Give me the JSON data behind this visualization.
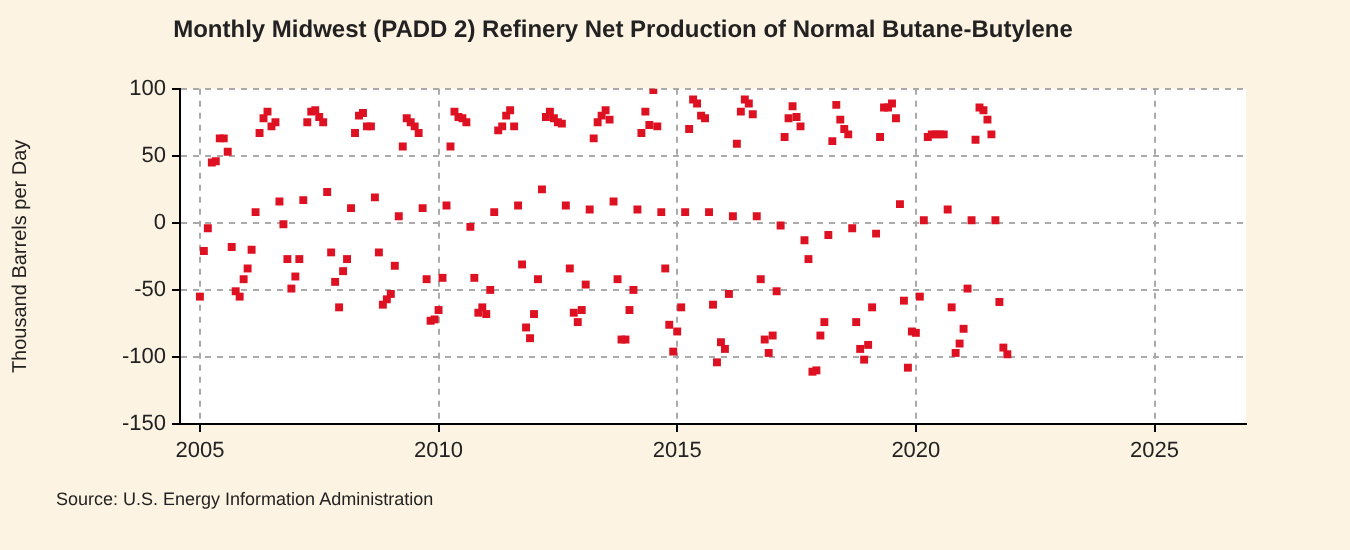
{
  "chart_data": {
    "type": "scatter",
    "title": "Monthly Midwest (PADD 2) Refinery Net Production of Normal Butane-Butylene",
    "ylabel": "Thousand Barrels per Day",
    "annotations": [
      "Source: U.S. Energy Information Administration"
    ],
    "x": [
      "2005-01",
      "2005-02",
      "2005-03",
      "2005-04",
      "2005-05",
      "2005-06",
      "2005-07",
      "2005-08",
      "2005-09",
      "2005-10",
      "2005-11",
      "2005-12",
      "2006-01",
      "2006-02",
      "2006-03",
      "2006-04",
      "2006-05",
      "2006-06",
      "2006-07",
      "2006-08",
      "2006-09",
      "2006-10",
      "2006-11",
      "2006-12",
      "2007-01",
      "2007-02",
      "2007-03",
      "2007-04",
      "2007-05",
      "2007-06",
      "2007-07",
      "2007-08",
      "2007-09",
      "2007-10",
      "2007-11",
      "2007-12",
      "2008-01",
      "2008-02",
      "2008-03",
      "2008-04",
      "2008-05",
      "2008-06",
      "2008-07",
      "2008-08",
      "2008-09",
      "2008-10",
      "2008-11",
      "2008-12",
      "2009-01",
      "2009-02",
      "2009-03",
      "2009-04",
      "2009-05",
      "2009-06",
      "2009-07",
      "2009-08",
      "2009-09",
      "2009-10",
      "2009-11",
      "2009-12",
      "2010-01",
      "2010-02",
      "2010-03",
      "2010-04",
      "2010-05",
      "2010-06",
      "2010-07",
      "2010-08",
      "2010-09",
      "2010-10",
      "2010-11",
      "2010-12",
      "2011-01",
      "2011-02",
      "2011-03",
      "2011-04",
      "2011-05",
      "2011-06",
      "2011-07",
      "2011-08",
      "2011-09",
      "2011-10",
      "2011-11",
      "2011-12",
      "2012-01",
      "2012-02",
      "2012-03",
      "2012-04",
      "2012-05",
      "2012-06",
      "2012-07",
      "2012-08",
      "2012-09",
      "2012-10",
      "2012-11",
      "2012-12",
      "2013-01",
      "2013-02",
      "2013-03",
      "2013-04",
      "2013-05",
      "2013-06",
      "2013-07",
      "2013-08",
      "2013-09",
      "2013-10",
      "2013-11",
      "2013-12",
      "2014-01",
      "2014-02",
      "2014-03",
      "2014-04",
      "2014-05",
      "2014-06",
      "2014-07",
      "2014-08",
      "2014-09",
      "2014-10",
      "2014-11",
      "2014-12",
      "2015-01",
      "2015-02",
      "2015-03",
      "2015-04",
      "2015-05",
      "2015-06",
      "2015-07",
      "2015-08",
      "2015-09",
      "2015-10",
      "2015-11",
      "2015-12",
      "2016-01",
      "2016-02",
      "2016-03",
      "2016-04",
      "2016-05",
      "2016-06",
      "2016-07",
      "2016-08",
      "2016-09",
      "2016-10",
      "2016-11",
      "2016-12",
      "2017-01",
      "2017-02",
      "2017-03",
      "2017-04",
      "2017-05",
      "2017-06",
      "2017-07",
      "2017-08",
      "2017-09",
      "2017-10",
      "2017-11",
      "2017-12",
      "2018-01",
      "2018-02",
      "2018-03",
      "2018-04",
      "2018-05",
      "2018-06",
      "2018-07",
      "2018-08",
      "2018-09",
      "2018-10",
      "2018-11",
      "2018-12",
      "2019-01",
      "2019-02",
      "2019-03",
      "2019-04",
      "2019-05",
      "2019-06",
      "2019-07",
      "2019-08",
      "2019-09",
      "2019-10",
      "2019-11",
      "2019-12",
      "2020-01",
      "2020-02",
      "2020-03",
      "2020-04",
      "2020-05",
      "2020-06",
      "2020-07",
      "2020-08",
      "2020-09",
      "2020-10",
      "2020-11",
      "2020-12",
      "2021-01",
      "2021-02",
      "2021-03",
      "2021-04",
      "2021-05",
      "2021-06",
      "2021-07",
      "2021-08",
      "2021-09",
      "2021-10",
      "2021-11",
      "2021-12"
    ],
    "series": [
      {
        "color": "#dd1122",
        "values": [
          -55,
          -21,
          -4,
          45,
          46,
          63,
          63,
          53,
          -18,
          -51,
          -55,
          -42,
          -34,
          -20,
          8,
          67,
          78,
          83,
          72,
          75,
          16,
          -1,
          -27,
          -49,
          -40,
          -27,
          17,
          75,
          83,
          84,
          79,
          75,
          23,
          -22,
          -44,
          -63,
          -36,
          -27,
          11,
          67,
          80,
          82,
          72,
          72,
          19,
          -22,
          -61,
          -57,
          -53,
          -32,
          5,
          57,
          78,
          75,
          72,
          67,
          11,
          -42,
          -73,
          -72,
          -65,
          -41,
          13,
          57,
          83,
          79,
          78,
          75,
          -3,
          -41,
          -67,
          -63,
          -68,
          -50,
          8,
          69,
          72,
          80,
          84,
          72,
          13,
          -31,
          -78,
          -86,
          -68,
          -42,
          25,
          79,
          83,
          78,
          75,
          74,
          13,
          -34,
          -67,
          -74,
          -65,
          -46,
          10,
          63,
          75,
          80,
          84,
          77,
          16,
          -42,
          -87,
          -87,
          -65,
          -50,
          10,
          67,
          83,
          73,
          99,
          72,
          8,
          -34,
          -76,
          -96,
          -81,
          -63,
          8,
          70,
          92,
          89,
          80,
          78,
          8,
          -61,
          -104,
          -89,
          -94,
          -53,
          5,
          59,
          83,
          92,
          89,
          81,
          5,
          -42,
          -87,
          -97,
          -84,
          -51,
          -2,
          64,
          78,
          87,
          79,
          72,
          -13,
          -27,
          -111,
          -110,
          -84,
          -74,
          -9,
          61,
          88,
          77,
          70,
          66,
          -4,
          -74,
          -94,
          -102,
          -91,
          -63,
          -8,
          64,
          86,
          86,
          89,
          78,
          14,
          -58,
          -108,
          -81,
          -82,
          -55,
          2,
          64,
          66,
          66,
          66,
          66,
          10,
          -63,
          -97,
          -90,
          -79,
          -49,
          2,
          62,
          86,
          84,
          77,
          66,
          2,
          -59,
          -93,
          -98
        ]
      }
    ],
    "xlim": [
      "2004-08",
      "2026-12"
    ],
    "xticks": [
      "2005",
      "2010",
      "2015",
      "2020",
      "2025"
    ],
    "ylim": [
      -150,
      100
    ],
    "yticks": [
      -150,
      -100,
      -50,
      0,
      50,
      100
    ],
    "grid": true,
    "marker": "square",
    "legend": false
  }
}
